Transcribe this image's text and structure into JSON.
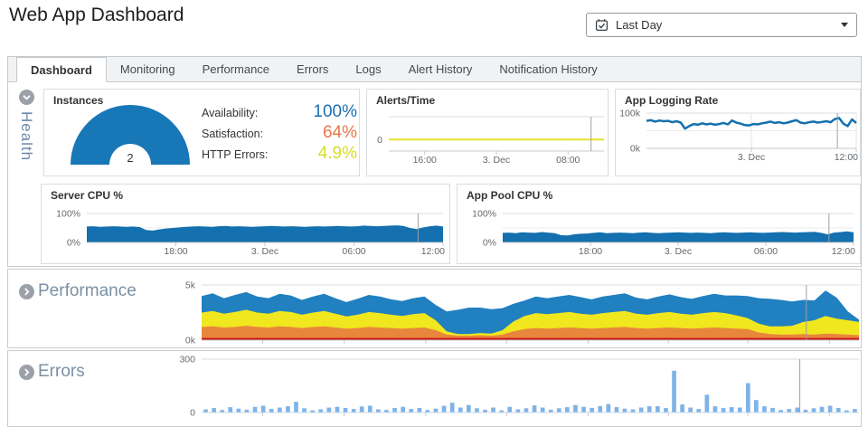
{
  "header": {
    "title": "Web App Dashboard"
  },
  "period_selector": {
    "value": "Last Day",
    "icon": "calendar-check-icon"
  },
  "tabs": [
    {
      "label": "Dashboard",
      "active": true
    },
    {
      "label": "Monitoring",
      "active": false
    },
    {
      "label": "Performance",
      "active": false
    },
    {
      "label": "Errors",
      "active": false
    },
    {
      "label": "Logs",
      "active": false
    },
    {
      "label": "Alert History",
      "active": false
    },
    {
      "label": "Notification History",
      "active": false
    }
  ],
  "health": {
    "section_label": "Health",
    "panels": {
      "instances": {
        "title": "Instances"
      },
      "alerts": {
        "title": "Alerts/Time"
      },
      "app_logging_rate": {
        "title": "App Logging Rate"
      },
      "server_cpu": {
        "title": "Server CPU %"
      },
      "app_pool_cpu": {
        "title": "App Pool CPU %"
      }
    },
    "stats": [
      {
        "label": "Availability:",
        "value": "100%",
        "color": "#1d6fb0"
      },
      {
        "label": "Satisfaction:",
        "value": "64%",
        "color": "#e8764a"
      },
      {
        "label": "HTTP Errors:",
        "value": "4.9%",
        "color": "#d6dc28"
      }
    ]
  },
  "sections": {
    "performance": {
      "label": "Performance"
    },
    "errors": {
      "label": "Errors"
    }
  },
  "chart_data": {
    "instances_gauge": {
      "type": "gauge",
      "title": "Instances",
      "value": "2",
      "color": "#1777b7"
    },
    "alerts_time": {
      "type": "line",
      "title": "Alerts/Time",
      "color": "#e6e129",
      "line_width": 2,
      "ylim": [
        -1,
        2
      ],
      "values": [
        0,
        0,
        0,
        0,
        0,
        0,
        0,
        0,
        0,
        0,
        0,
        0,
        0,
        0,
        0,
        0,
        0,
        0,
        0,
        0,
        0,
        0,
        0,
        0,
        0
      ],
      "yticks": [
        {
          "label": "0",
          "value": 0
        }
      ],
      "xticks": [
        {
          "label": "16:00",
          "pct": 16.7
        },
        {
          "label": "3. Dec",
          "pct": 50
        },
        {
          "label": "08:00",
          "pct": 83.3
        }
      ],
      "marker_pct": 94
    },
    "app_logging_rate": {
      "type": "line",
      "title": "App Logging Rate",
      "color": "#1470ae",
      "line_width": 2.5,
      "ylim": [
        0,
        100
      ],
      "unit": "k",
      "values": [
        78,
        80,
        76,
        79,
        77,
        78,
        74,
        77,
        73,
        56,
        63,
        69,
        67,
        71,
        68,
        70,
        67,
        69,
        72,
        68,
        79,
        73,
        70,
        66,
        65,
        69,
        68,
        71,
        73,
        76,
        72,
        74,
        71,
        73,
        77,
        80,
        73,
        71,
        74,
        76,
        73,
        75,
        77,
        74,
        83,
        86,
        70,
        63,
        82,
        72
      ],
      "yticks": [
        {
          "label": "100k",
          "value": 100
        },
        {
          "label": "0k",
          "value": 0
        }
      ],
      "gridlines": [
        50
      ],
      "vgrid": [
        50,
        100
      ],
      "xticks": [
        {
          "label": "3. Dec",
          "pct": 50
        },
        {
          "label": "12:00",
          "pct": 100
        }
      ],
      "marker_pct": 91
    },
    "server_cpu": {
      "type": "area",
      "title": "Server CPU %",
      "color": "#1470ae",
      "ylim": [
        0,
        100
      ],
      "unit": "%",
      "values": [
        55,
        56,
        54,
        55,
        56,
        55,
        54,
        55,
        53,
        43,
        41,
        45,
        48,
        50,
        52,
        54,
        55,
        56,
        55,
        54,
        56,
        57,
        55,
        56,
        55,
        54,
        55,
        56,
        57,
        56,
        55,
        56,
        55,
        54,
        55,
        56,
        55,
        56,
        57,
        56,
        55,
        56,
        58,
        57,
        56,
        57,
        58,
        59,
        57,
        50,
        46,
        52,
        56,
        58,
        55
      ],
      "yticks": [
        {
          "label": "100%",
          "value": 100
        },
        {
          "label": "0%",
          "value": 0
        }
      ],
      "gridlines": [
        50
      ],
      "xticks": [
        {
          "label": "18:00",
          "pct": 25
        },
        {
          "label": "3. Dec",
          "pct": 50
        },
        {
          "label": "06:00",
          "pct": 75
        },
        {
          "label": "12:00",
          "pct": 100
        }
      ],
      "marker_pct": 93
    },
    "app_pool_cpu": {
      "type": "area",
      "title": "App Pool CPU %",
      "color": "#1470ae",
      "ylim": [
        0,
        100
      ],
      "unit": "%",
      "values": [
        33,
        34,
        32,
        35,
        34,
        33,
        36,
        34,
        32,
        25,
        24,
        28,
        30,
        31,
        33,
        35,
        32,
        33,
        34,
        33,
        32,
        34,
        35,
        33,
        32,
        33,
        34,
        35,
        34,
        33,
        34,
        33,
        32,
        34,
        35,
        34,
        33,
        34,
        35,
        34,
        33,
        34,
        35,
        36,
        35,
        34,
        35,
        36,
        37,
        33,
        28,
        34,
        36,
        38,
        35
      ],
      "yticks": [
        {
          "label": "100%",
          "value": 100
        },
        {
          "label": "0%",
          "value": 0
        }
      ],
      "gridlines": [
        50
      ],
      "xticks": [
        {
          "label": "18:00",
          "pct": 25
        },
        {
          "label": "3. Dec",
          "pct": 50
        },
        {
          "label": "06:00",
          "pct": 75
        },
        {
          "label": "12:00",
          "pct": 100
        }
      ],
      "marker_pct": 93
    },
    "performance": {
      "type": "stacked_area",
      "title": "Performance",
      "ylim": [
        0,
        5
      ],
      "unit": "k",
      "series": [
        {
          "color": "#cc1111",
          "values": [
            0.2,
            0.2,
            0.2,
            0.2,
            0.2,
            0.2,
            0.2,
            0.2,
            0.2,
            0.2,
            0.2,
            0.2,
            0.2,
            0.2,
            0.2,
            0.2,
            0.2,
            0.2,
            0.2,
            0.2,
            0.2,
            0.2,
            0.2,
            0.2,
            0.2,
            0.2,
            0.2,
            0.2,
            0.2,
            0.2,
            0.2,
            0.2,
            0.2,
            0.2,
            0.2,
            0.2,
            0.2,
            0.2,
            0.2,
            0.2,
            0.2,
            0.2,
            0.2,
            0.2,
            0.2,
            0.2,
            0.2,
            0.2,
            0.2,
            0.2,
            0.2,
            0.2,
            0.2,
            0.2,
            0.2,
            0.2,
            0.2,
            0.2,
            0.2,
            0.2
          ]
        },
        {
          "color": "#e8863c",
          "values": [
            1.0,
            1.05,
            0.95,
            1.0,
            1.1,
            1.0,
            0.95,
            1.05,
            1.0,
            0.9,
            1.0,
            1.05,
            0.95,
            0.85,
            0.9,
            1.0,
            0.95,
            0.9,
            0.85,
            0.9,
            0.95,
            0.7,
            0.3,
            0.2,
            0.2,
            0.25,
            0.2,
            0.3,
            0.6,
            0.8,
            0.9,
            0.85,
            0.9,
            0.95,
            0.9,
            0.85,
            0.9,
            0.95,
            1.0,
            0.9,
            0.85,
            0.9,
            0.95,
            0.9,
            0.85,
            0.9,
            0.95,
            0.9,
            0.85,
            0.8,
            0.5,
            0.35,
            0.3,
            0.3,
            0.35,
            0.3,
            0.4,
            0.35,
            0.3,
            0.25
          ]
        },
        {
          "color": "#f0e71e",
          "values": [
            1.3,
            1.4,
            1.25,
            1.35,
            1.45,
            1.3,
            1.25,
            1.4,
            1.35,
            1.2,
            1.3,
            1.4,
            1.25,
            1.1,
            1.2,
            1.35,
            1.3,
            1.2,
            1.15,
            1.25,
            1.3,
            0.9,
            0.3,
            0.15,
            0.15,
            0.2,
            0.2,
            0.4,
            0.9,
            1.2,
            1.35,
            1.3,
            1.35,
            1.4,
            1.3,
            1.25,
            1.35,
            1.4,
            1.45,
            1.3,
            1.25,
            1.35,
            1.4,
            1.3,
            1.25,
            1.35,
            1.4,
            1.35,
            1.2,
            1.0,
            0.8,
            0.7,
            0.75,
            0.8,
            1.1,
            1.3,
            1.6,
            1.4,
            1.3,
            1.2
          ]
        },
        {
          "color": "#2180c0",
          "values": [
            1.5,
            1.6,
            1.4,
            1.55,
            1.6,
            1.45,
            1.4,
            1.55,
            1.5,
            1.35,
            1.45,
            1.55,
            1.4,
            1.3,
            1.45,
            1.55,
            1.5,
            1.4,
            1.35,
            1.45,
            1.5,
            1.4,
            1.8,
            2.2,
            2.4,
            2.3,
            2.2,
            2.0,
            1.6,
            1.4,
            1.5,
            1.45,
            1.5,
            1.55,
            1.5,
            1.4,
            1.5,
            1.55,
            1.6,
            1.45,
            1.4,
            1.5,
            1.6,
            1.5,
            1.45,
            1.55,
            1.65,
            1.6,
            1.8,
            2.0,
            2.3,
            2.5,
            2.4,
            2.2,
            2.0,
            1.8,
            2.3,
            1.9,
            0.8,
            0.2
          ]
        }
      ],
      "yticks": [
        {
          "label": "5k",
          "value": 5
        },
        {
          "label": "0k",
          "value": 0
        }
      ],
      "xtick_marks": [
        9.3,
        21.7,
        34.1,
        46.4,
        58.8,
        71,
        83.1,
        95.5
      ],
      "marker_pct": 92
    },
    "errors": {
      "type": "bar",
      "title": "Errors",
      "color": "#7fb3e8",
      "ylim": [
        0,
        300
      ],
      "values": [
        18,
        25,
        14,
        30,
        22,
        16,
        32,
        38,
        20,
        28,
        35,
        60,
        24,
        12,
        18,
        28,
        32,
        26,
        20,
        34,
        38,
        18,
        14,
        26,
        32,
        20,
        26,
        14,
        22,
        38,
        55,
        28,
        42,
        24,
        16,
        28,
        12,
        32,
        18,
        24,
        40,
        28,
        16,
        24,
        30,
        42,
        32,
        26,
        36,
        48,
        30,
        22,
        18,
        28,
        35,
        35,
        25,
        235,
        45,
        28,
        20,
        100,
        35,
        25,
        30,
        28,
        165,
        70,
        35,
        26,
        14,
        20,
        28,
        16,
        24,
        32,
        38,
        26,
        12,
        20
      ],
      "yticks": [
        {
          "label": "300",
          "value": 300
        },
        {
          "label": "0",
          "value": 0
        }
      ],
      "xtick_marks": [
        9.3,
        21.7,
        34.1,
        46.4,
        58.8,
        71,
        83.1,
        95.5
      ],
      "marker_pct": 91
    }
  }
}
